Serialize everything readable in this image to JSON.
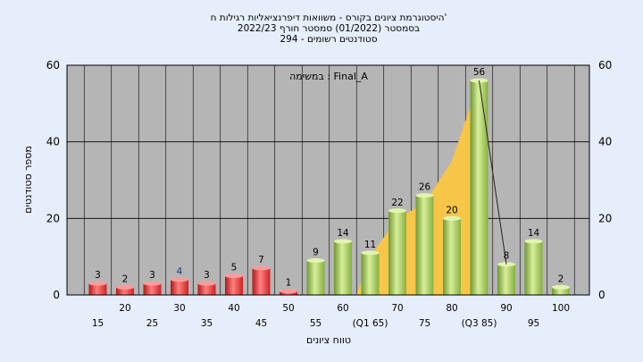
{
  "title_lines": [
    "היסטוגרמת ציונים בקורס - משוואות דיפרנציאליות רגילות ח'",
    "בסמסטר  (01/2022)  סמסטר חורף 2022/23",
    "סטודנטים רשומים - 294"
  ],
  "annotation": "במשימה : Final_A",
  "chart_data": {
    "type": "bar",
    "xlabel": "טווח ציונים",
    "ylabel": "מספר סטודנטים",
    "ylim": [
      0,
      60
    ],
    "yticks": [
      0,
      20,
      40,
      60
    ],
    "grid": true,
    "categories": [
      "15",
      "20",
      "25",
      "30",
      "35",
      "40",
      "45",
      "50",
      "55",
      "60",
      "(Q1 65)",
      "70",
      "75",
      "80",
      "(Q3 85)",
      "90",
      "95",
      "100"
    ],
    "values": [
      3,
      2,
      3,
      4,
      3,
      5,
      7,
      1,
      9,
      14,
      11,
      22,
      26,
      20,
      56,
      8,
      14,
      2
    ],
    "value_labels": [
      "3",
      "2",
      "3",
      "4",
      "3",
      "5",
      "7",
      "1",
      "9",
      "14",
      "11",
      "22",
      "26",
      "20",
      "56",
      "8",
      "14",
      "2"
    ],
    "colors": {
      "fail": "#e03030",
      "pass": "#96c050",
      "quartile_area": "#f7c547",
      "plot_bg": "#b5b5b5",
      "page_bg": "#e6eefb"
    },
    "fail_count": 8,
    "quartile_range": [
      "(Q1 65)",
      "(Q3 85)"
    ]
  }
}
